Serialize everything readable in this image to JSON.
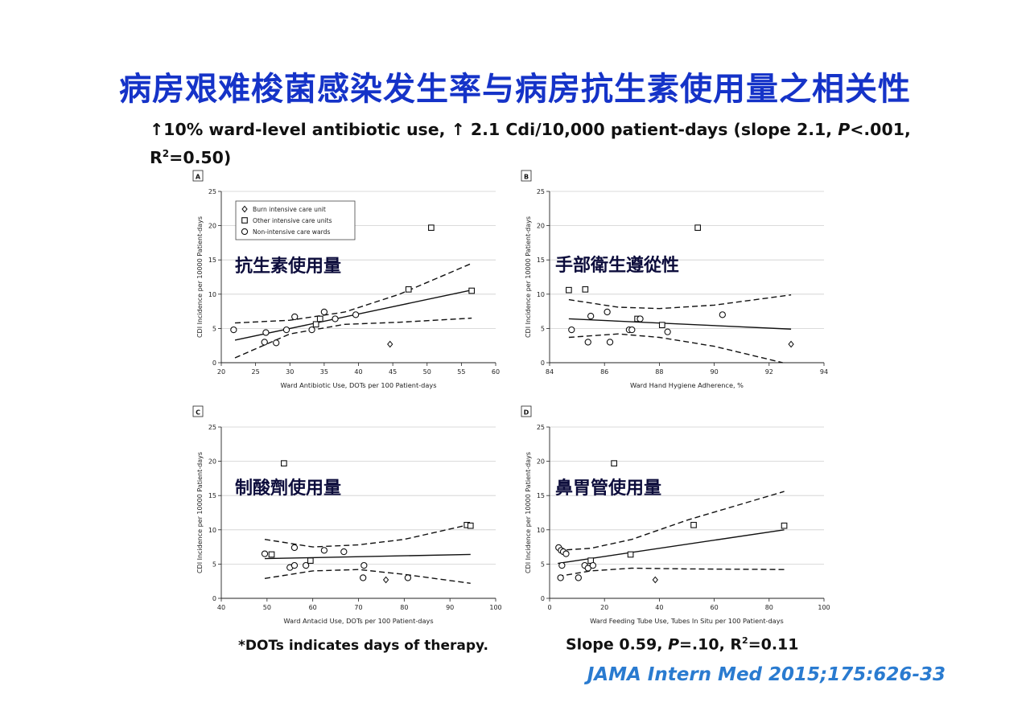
{
  "slide": {
    "title": "病房艰难梭菌感染发生率与病房抗生素使用量之相关性",
    "subtitle_line1_pre": "↑10% ward-level antibiotic use, ↑ 2.1 Cdi/10,000 patient-days (slope 2.1, ",
    "subtitle_line1_p": "P",
    "subtitle_line1_post": "<.001,",
    "subtitle_line2_pre": "R",
    "subtitle_line2_sup": "2",
    "subtitle_line2_post": "=0.50)",
    "footnote": "*DOTs indicates days of therapy.",
    "slope_pre": "Slope 0.59, ",
    "slope_p": "P",
    "slope_mid": "=.10, R",
    "slope_sup": "2",
    "slope_post": "=0.11",
    "citation": "JAMA Intern Med 2015;175:626-33"
  },
  "legend": {
    "burn": "Burn intensive care unit",
    "other": "Other intensive care units",
    "non": "Non-intensive care wards"
  },
  "chart_data": [
    {
      "type": "scatter",
      "panel": "A",
      "overlay_label": "抗生素使用量",
      "xlabel": "Ward Antibiotic Use, DOTs per 100 Patient-days",
      "ylabel": "CDI Incidence per 10000 Patient-days",
      "xlim": [
        20,
        60
      ],
      "ylim": [
        0,
        25
      ],
      "xticks": [
        20,
        25,
        30,
        35,
        40,
        45,
        50,
        55,
        60
      ],
      "yticks": [
        0,
        5,
        10,
        15,
        20,
        25
      ],
      "grid": true,
      "legend_position": "top-left",
      "points": [
        {
          "x": 21.8,
          "y": 4.8,
          "cat": "non"
        },
        {
          "x": 26.5,
          "y": 4.4,
          "cat": "non"
        },
        {
          "x": 26.3,
          "y": 3.0,
          "cat": "non"
        },
        {
          "x": 28.0,
          "y": 2.9,
          "cat": "non"
        },
        {
          "x": 29.5,
          "y": 4.8,
          "cat": "non"
        },
        {
          "x": 30.7,
          "y": 6.7,
          "cat": "non"
        },
        {
          "x": 33.2,
          "y": 4.8,
          "cat": "non"
        },
        {
          "x": 33.8,
          "y": 5.6,
          "cat": "other"
        },
        {
          "x": 34.4,
          "y": 6.4,
          "cat": "other"
        },
        {
          "x": 35.0,
          "y": 7.4,
          "cat": "non"
        },
        {
          "x": 36.6,
          "y": 6.4,
          "cat": "non"
        },
        {
          "x": 39.6,
          "y": 7.0,
          "cat": "non"
        },
        {
          "x": 44.6,
          "y": 2.7,
          "cat": "burn"
        },
        {
          "x": 47.3,
          "y": 10.7,
          "cat": "other"
        },
        {
          "x": 50.6,
          "y": 19.7,
          "cat": "other"
        },
        {
          "x": 56.5,
          "y": 10.5,
          "cat": "other"
        }
      ],
      "fit": [
        [
          22,
          3.3
        ],
        [
          56.5,
          10.6
        ]
      ],
      "ci_upper": [
        [
          22,
          5.8
        ],
        [
          30,
          6.2
        ],
        [
          38,
          7.4
        ],
        [
          46,
          10.0
        ],
        [
          56.5,
          14.5
        ]
      ],
      "ci_lower": [
        [
          22,
          0.7
        ],
        [
          30,
          4.2
        ],
        [
          38,
          5.6
        ],
        [
          46,
          5.9
        ],
        [
          56.5,
          6.5
        ]
      ]
    },
    {
      "type": "scatter",
      "panel": "B",
      "overlay_label": "手部衛生遵從性",
      "xlabel": "Ward Hand Hygiene Adherence, %",
      "ylabel": "CDI Incidence per 10000 Patient-days",
      "xlim": [
        84,
        94
      ],
      "ylim": [
        0,
        25
      ],
      "xticks": [
        84,
        86,
        88,
        90,
        92,
        94
      ],
      "yticks": [
        0,
        5,
        10,
        15,
        20,
        25
      ],
      "grid": true,
      "points": [
        {
          "x": 84.7,
          "y": 10.6,
          "cat": "other"
        },
        {
          "x": 85.3,
          "y": 10.7,
          "cat": "other"
        },
        {
          "x": 84.8,
          "y": 4.8,
          "cat": "non"
        },
        {
          "x": 85.5,
          "y": 6.8,
          "cat": "non"
        },
        {
          "x": 85.4,
          "y": 3.0,
          "cat": "non"
        },
        {
          "x": 86.1,
          "y": 7.4,
          "cat": "non"
        },
        {
          "x": 86.2,
          "y": 3.0,
          "cat": "non"
        },
        {
          "x": 86.9,
          "y": 4.8,
          "cat": "non"
        },
        {
          "x": 87.0,
          "y": 4.8,
          "cat": "non"
        },
        {
          "x": 87.2,
          "y": 6.4,
          "cat": "other"
        },
        {
          "x": 87.3,
          "y": 6.4,
          "cat": "non"
        },
        {
          "x": 88.1,
          "y": 5.5,
          "cat": "other"
        },
        {
          "x": 88.3,
          "y": 4.5,
          "cat": "non"
        },
        {
          "x": 89.4,
          "y": 19.7,
          "cat": "other"
        },
        {
          "x": 90.3,
          "y": 7.0,
          "cat": "non"
        },
        {
          "x": 92.8,
          "y": 2.7,
          "cat": "burn"
        }
      ],
      "fit": [
        [
          84.7,
          6.4
        ],
        [
          92.8,
          4.9
        ]
      ],
      "ci_upper": [
        [
          84.7,
          9.2
        ],
        [
          86.5,
          8.1
        ],
        [
          88,
          7.9
        ],
        [
          90,
          8.4
        ],
        [
          92.8,
          9.9
        ]
      ],
      "ci_lower": [
        [
          84.7,
          3.7
        ],
        [
          86.5,
          4.2
        ],
        [
          88,
          3.7
        ],
        [
          90,
          2.4
        ],
        [
          92.5,
          0
        ]
      ]
    },
    {
      "type": "scatter",
      "panel": "C",
      "overlay_label": "制酸劑使用量",
      "xlabel": "Ward Antacid Use, DOTs per 100 Patient-days",
      "ylabel": "CDI Incidence per 10000 Patient-days",
      "xlim": [
        40,
        100
      ],
      "ylim": [
        0,
        25
      ],
      "xticks": [
        40,
        50,
        60,
        70,
        80,
        90,
        100
      ],
      "yticks": [
        0,
        5,
        10,
        15,
        20,
        25
      ],
      "grid": true,
      "points": [
        {
          "x": 49.5,
          "y": 6.5,
          "cat": "non"
        },
        {
          "x": 51.0,
          "y": 6.4,
          "cat": "other"
        },
        {
          "x": 53.7,
          "y": 19.7,
          "cat": "other"
        },
        {
          "x": 55.0,
          "y": 4.5,
          "cat": "non"
        },
        {
          "x": 56.0,
          "y": 7.4,
          "cat": "non"
        },
        {
          "x": 56.0,
          "y": 4.8,
          "cat": "non"
        },
        {
          "x": 58.5,
          "y": 4.8,
          "cat": "non"
        },
        {
          "x": 59.5,
          "y": 5.5,
          "cat": "other"
        },
        {
          "x": 62.5,
          "y": 7.0,
          "cat": "non"
        },
        {
          "x": 66.8,
          "y": 6.8,
          "cat": "non"
        },
        {
          "x": 71.0,
          "y": 3.0,
          "cat": "non"
        },
        {
          "x": 71.2,
          "y": 4.8,
          "cat": "non"
        },
        {
          "x": 76.0,
          "y": 2.7,
          "cat": "burn"
        },
        {
          "x": 80.8,
          "y": 3.0,
          "cat": "non"
        },
        {
          "x": 93.7,
          "y": 10.7,
          "cat": "other"
        },
        {
          "x": 94.5,
          "y": 10.6,
          "cat": "other"
        }
      ],
      "fit": [
        [
          49.5,
          5.8
        ],
        [
          94.5,
          6.4
        ]
      ],
      "ci_upper": [
        [
          49.5,
          8.6
        ],
        [
          60,
          7.5
        ],
        [
          70,
          7.8
        ],
        [
          80,
          8.6
        ],
        [
          94.5,
          10.8
        ]
      ],
      "ci_lower": [
        [
          49.5,
          2.9
        ],
        [
          60,
          4.0
        ],
        [
          70,
          4.2
        ],
        [
          80,
          3.5
        ],
        [
          94.5,
          2.2
        ]
      ]
    },
    {
      "type": "scatter",
      "panel": "D",
      "overlay_label": "鼻胃管使用量",
      "xlabel": "Ward Feeding Tube Use, Tubes In Situ per 100 Patient-days",
      "ylabel": "CDI Incidence per 10000 Patient-days",
      "xlim": [
        0,
        100
      ],
      "ylim": [
        0,
        25
      ],
      "xticks": [
        0,
        20,
        40,
        60,
        80,
        100
      ],
      "yticks": [
        0,
        5,
        10,
        15,
        20,
        25
      ],
      "grid": true,
      "points": [
        {
          "x": 3.3,
          "y": 7.4,
          "cat": "non"
        },
        {
          "x": 4.2,
          "y": 7.0,
          "cat": "non"
        },
        {
          "x": 5.0,
          "y": 6.8,
          "cat": "non"
        },
        {
          "x": 6.0,
          "y": 6.5,
          "cat": "non"
        },
        {
          "x": 4.5,
          "y": 4.8,
          "cat": "non"
        },
        {
          "x": 4.0,
          "y": 3.0,
          "cat": "non"
        },
        {
          "x": 10.5,
          "y": 3.0,
          "cat": "non"
        },
        {
          "x": 12.8,
          "y": 4.8,
          "cat": "non"
        },
        {
          "x": 14.0,
          "y": 4.4,
          "cat": "non"
        },
        {
          "x": 15.0,
          "y": 5.5,
          "cat": "other"
        },
        {
          "x": 15.8,
          "y": 4.8,
          "cat": "non"
        },
        {
          "x": 23.5,
          "y": 19.7,
          "cat": "other"
        },
        {
          "x": 29.5,
          "y": 6.4,
          "cat": "other"
        },
        {
          "x": 38.5,
          "y": 2.7,
          "cat": "burn"
        },
        {
          "x": 52.5,
          "y": 10.7,
          "cat": "other"
        },
        {
          "x": 85.5,
          "y": 10.6,
          "cat": "other"
        }
      ],
      "fit": [
        [
          3,
          5.1
        ],
        [
          85.5,
          10.0
        ]
      ],
      "ci_upper": [
        [
          3,
          7.0
        ],
        [
          15,
          7.3
        ],
        [
          30,
          8.6
        ],
        [
          50,
          11.4
        ],
        [
          85.5,
          15.6
        ]
      ],
      "ci_lower": [
        [
          3,
          3.2
        ],
        [
          15,
          4.0
        ],
        [
          30,
          4.4
        ],
        [
          50,
          4.3
        ],
        [
          85.5,
          4.2
        ]
      ]
    }
  ]
}
